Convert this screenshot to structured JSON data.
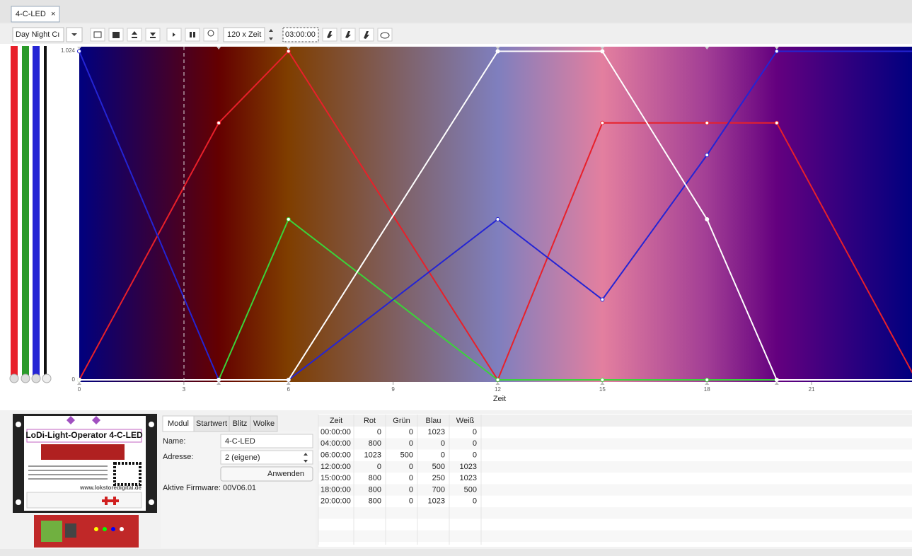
{
  "tab": "4-C-LED",
  "toolbar": {
    "preset": "Day Night Cı",
    "speed": "120 x Zeit",
    "time": "03:00:00"
  },
  "chart_data": {
    "type": "line",
    "xlabel": "Zeit",
    "x": [
      0,
      4,
      6,
      12,
      15,
      18,
      20
    ],
    "xlim": [
      0,
      24
    ],
    "xticks": [
      0,
      3,
      6,
      9,
      12,
      15,
      18,
      21
    ],
    "ylim": [
      0,
      1024
    ],
    "yticks": [
      0,
      {
        "value": 1024,
        "label": "1.024"
      }
    ],
    "series": [
      {
        "color": "#e8202a",
        "values": [
          0,
          800,
          1023,
          0,
          800,
          800,
          800
        ]
      },
      {
        "color": "#3ad43a",
        "values": [
          0,
          0,
          500,
          0,
          0,
          0,
          0
        ]
      },
      {
        "color": "#2424d4",
        "values": [
          1023,
          0,
          0,
          500,
          250,
          700,
          1023
        ]
      },
      {
        "color": "#ffffff",
        "values": [
          0,
          0,
          0,
          1023,
          1023,
          500,
          0
        ]
      }
    ]
  },
  "module_image": {
    "title": "LoDi-Light-Operator  4-C-LED",
    "url": "www.lokstoredigital.de"
  },
  "module_panel": {
    "tabs": [
      "Modul",
      "Startwert",
      "Blitz",
      "Wolke"
    ],
    "name_label": "Name:",
    "name_value": "4-C-LED",
    "address_label": "Adresse:",
    "address_value": "2 (eigene)",
    "button": "Anwenden",
    "firmware": "Aktive Firmware: 00V06.01"
  },
  "table": {
    "columns": [
      "Zeit",
      "Rot",
      "Grün",
      "Blau",
      "Weiß"
    ],
    "times": [
      "00:00:00",
      "04:00:00",
      "06:00:00",
      "12:00:00",
      "15:00:00",
      "18:00:00",
      "20:00:00"
    ]
  }
}
